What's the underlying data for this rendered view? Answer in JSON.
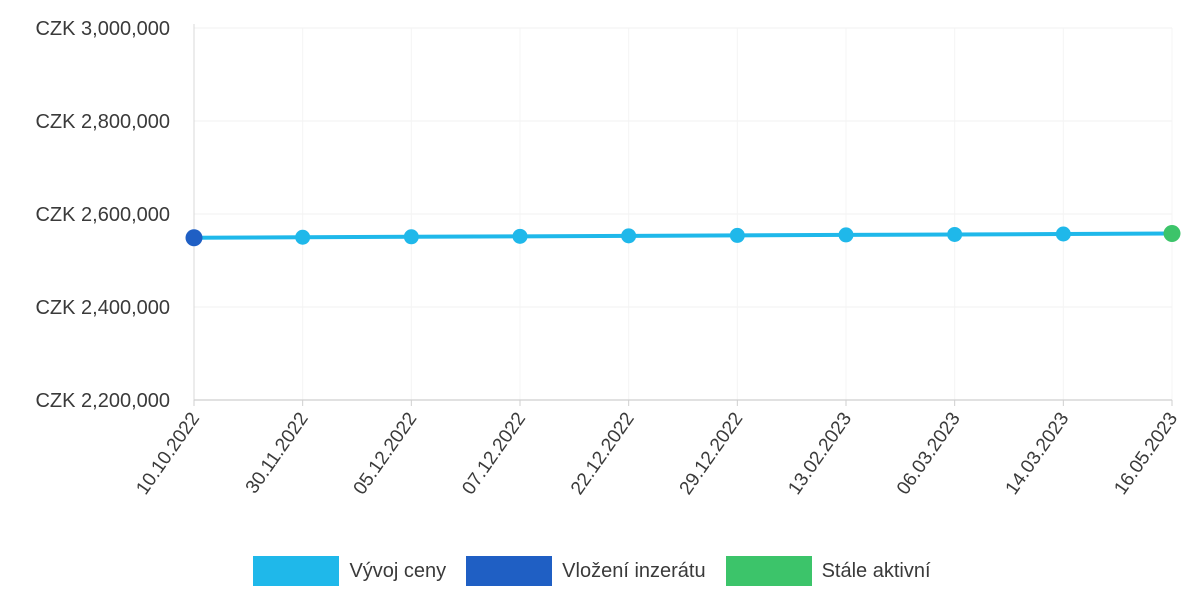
{
  "chart_data": {
    "type": "line",
    "title": "",
    "xlabel": "",
    "ylabel": "",
    "categories": [
      "10.10.2022",
      "30.11.2022",
      "05.12.2022",
      "07.12.2022",
      "22.12.2022",
      "29.12.2022",
      "13.02.2023",
      "06.03.2023",
      "14.03.2023",
      "16.05.2023"
    ],
    "series": [
      {
        "name": "Vývoj ceny",
        "color": "#1fb8ea",
        "values": [
          2549000,
          2550000,
          2551000,
          2552000,
          2553000,
          2554000,
          2555000,
          2556000,
          2557000,
          2558000
        ]
      }
    ],
    "markers": [
      {
        "name": "Vložení inzerátu",
        "color": "#1f5fc4",
        "category": "10.10.2022"
      },
      {
        "name": "Stále aktivní",
        "color": "#3cc46a",
        "category": "16.05.2023"
      }
    ],
    "ylim": [
      2200000,
      3000000
    ],
    "yticks": [
      3000000,
      2800000,
      2600000,
      2400000,
      2200000
    ],
    "ytick_labels": [
      "CZK 3,000,000",
      "CZK 2,800,000",
      "CZK 2,600,000",
      "CZK 2,400,000",
      "CZK 2,200,000"
    ],
    "grid": true,
    "legend_position": "bottom"
  },
  "legend": [
    {
      "label": "Vývoj ceny",
      "color": "#1fb8ea"
    },
    {
      "label": "Vložení inzerátu",
      "color": "#1f5fc4"
    },
    {
      "label": "Stále aktivní",
      "color": "#3cc46a"
    }
  ]
}
